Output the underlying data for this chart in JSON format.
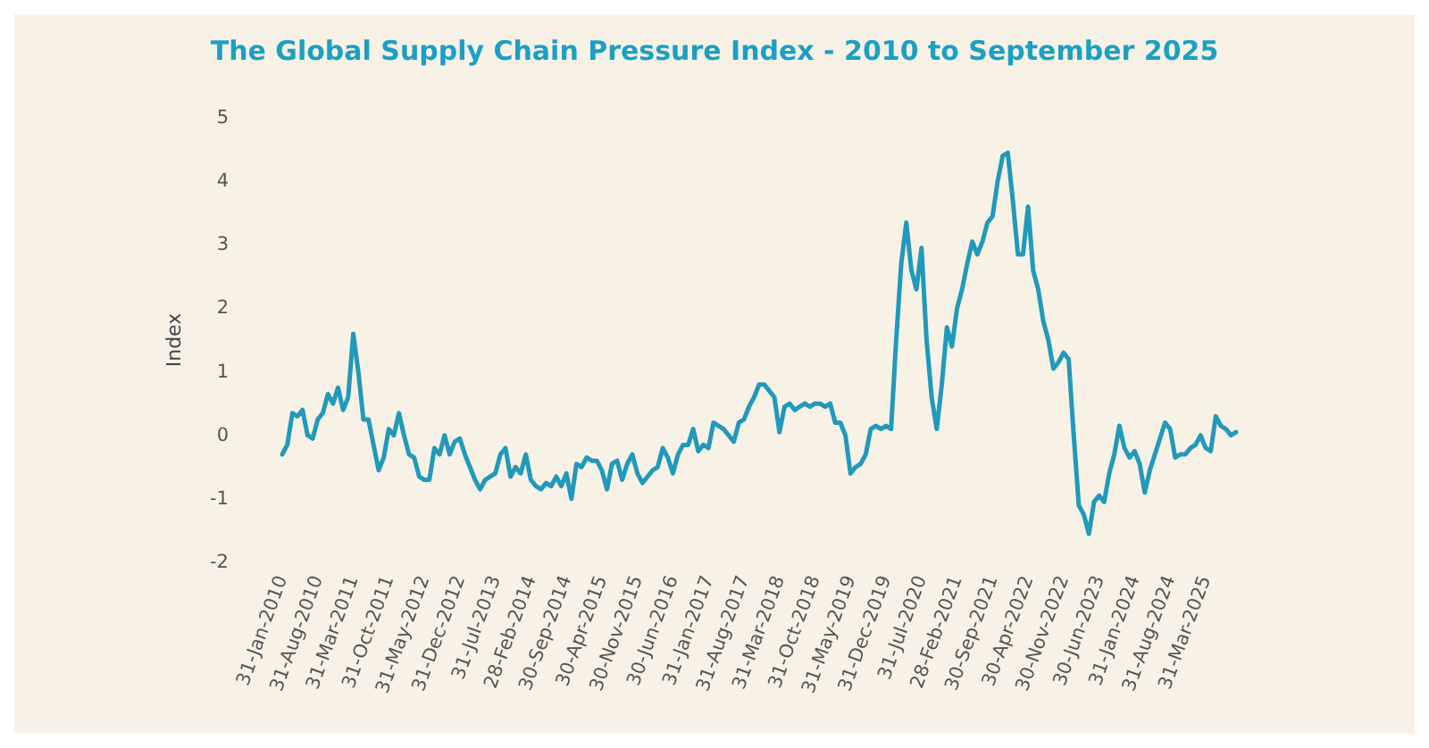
{
  "chart_data": {
    "type": "line",
    "title": "The Global Supply Chain Pressure Index - 2010 to September 2025",
    "ylabel": "Index",
    "categories": [
      "31-Jan-2010",
      null,
      null,
      null,
      null,
      null,
      null,
      "31-Aug-2010",
      null,
      null,
      null,
      null,
      null,
      null,
      "31-Mar-2011",
      null,
      null,
      null,
      null,
      null,
      null,
      "31-Oct-2011",
      null,
      null,
      null,
      null,
      null,
      null,
      "31-May-2012",
      null,
      null,
      null,
      null,
      null,
      null,
      "31-Dec-2012",
      null,
      null,
      null,
      null,
      null,
      null,
      "31-Jul-2013",
      null,
      null,
      null,
      null,
      null,
      null,
      "28-Feb-2014",
      null,
      null,
      null,
      null,
      null,
      null,
      "30-Sep-2014",
      null,
      null,
      null,
      null,
      null,
      null,
      "30-Apr-2015",
      null,
      null,
      null,
      null,
      null,
      null,
      "30-Nov-2015",
      null,
      null,
      null,
      null,
      null,
      null,
      "30-Jun-2016",
      null,
      null,
      null,
      null,
      null,
      null,
      "31-Jan-2017",
      null,
      null,
      null,
      null,
      null,
      null,
      "31-Aug-2017",
      null,
      null,
      null,
      null,
      null,
      null,
      "31-Mar-2018",
      null,
      null,
      null,
      null,
      null,
      null,
      "31-Oct-2018",
      null,
      null,
      null,
      null,
      null,
      null,
      "31-May-2019",
      null,
      null,
      null,
      null,
      null,
      null,
      "31-Dec-2019",
      null,
      null,
      null,
      null,
      null,
      null,
      "31-Jul-2020",
      null,
      null,
      null,
      null,
      null,
      null,
      "28-Feb-2021",
      null,
      null,
      null,
      null,
      null,
      null,
      "30-Sep-2021",
      null,
      null,
      null,
      null,
      null,
      null,
      "30-Apr-2022",
      null,
      null,
      null,
      null,
      null,
      null,
      "30-Nov-2022",
      null,
      null,
      null,
      null,
      null,
      null,
      "30-Jun-2023",
      null,
      null,
      null,
      null,
      null,
      null,
      "31-Jan-2024",
      null,
      null,
      null,
      null,
      null,
      null,
      "31-Aug-2024",
      null,
      null,
      null,
      null,
      null,
      null,
      "31-Mar-2025",
      null,
      null,
      null,
      null,
      null,
      null
    ],
    "series": [
      {
        "color": "#2199ba",
        "values": [
          -0.3,
          -0.15,
          0.35,
          0.3,
          0.4,
          0.0,
          -0.05,
          0.25,
          0.35,
          0.65,
          0.5,
          0.75,
          0.4,
          0.6,
          1.6,
          1.0,
          0.25,
          0.25,
          -0.15,
          -0.55,
          -0.35,
          0.1,
          0.0,
          0.35,
          0.0,
          -0.3,
          -0.35,
          -0.65,
          -0.7,
          -0.7,
          -0.2,
          -0.3,
          0.0,
          -0.3,
          -0.1,
          -0.05,
          -0.3,
          -0.5,
          -0.7,
          -0.85,
          -0.7,
          -0.65,
          -0.6,
          -0.3,
          -0.2,
          -0.65,
          -0.5,
          -0.6,
          -0.3,
          -0.7,
          -0.8,
          -0.85,
          -0.75,
          -0.8,
          -0.65,
          -0.8,
          -0.6,
          -1.0,
          -0.45,
          -0.5,
          -0.35,
          -0.4,
          -0.4,
          -0.55,
          -0.85,
          -0.45,
          -0.4,
          -0.7,
          -0.45,
          -0.3,
          -0.6,
          -0.75,
          -0.65,
          -0.55,
          -0.5,
          -0.2,
          -0.35,
          -0.6,
          -0.3,
          -0.15,
          -0.15,
          0.1,
          -0.25,
          -0.15,
          -0.2,
          0.2,
          0.15,
          0.1,
          0.0,
          -0.1,
          0.2,
          0.25,
          0.45,
          0.6,
          0.8,
          0.8,
          0.7,
          0.6,
          0.05,
          0.45,
          0.5,
          0.4,
          0.45,
          0.5,
          0.45,
          0.5,
          0.5,
          0.45,
          0.5,
          0.2,
          0.2,
          0.0,
          -0.6,
          -0.5,
          -0.45,
          -0.3,
          0.1,
          0.15,
          0.1,
          0.15,
          0.1,
          1.5,
          2.7,
          3.35,
          2.6,
          2.3,
          2.95,
          1.5,
          0.6,
          0.1,
          0.8,
          1.7,
          1.4,
          2.0,
          2.3,
          2.7,
          3.05,
          2.85,
          3.05,
          3.35,
          3.45,
          4.0,
          4.4,
          4.45,
          3.7,
          2.85,
          2.85,
          3.6,
          2.6,
          2.3,
          1.8,
          1.5,
          1.05,
          1.15,
          1.3,
          1.2,
          0.0,
          -1.1,
          -1.25,
          -1.55,
          -1.05,
          -0.95,
          -1.05,
          -0.6,
          -0.3,
          0.15,
          -0.2,
          -0.35,
          -0.25,
          -0.45,
          -0.9,
          -0.55,
          -0.3,
          -0.05,
          0.2,
          0.1,
          -0.35,
          -0.3,
          -0.3,
          -0.2,
          -0.15,
          0.0,
          -0.2,
          -0.25,
          0.3,
          0.15,
          0.1,
          0.0,
          0.05
        ]
      }
    ],
    "ylim": [
      -2,
      5
    ],
    "yticks": [
      -2,
      -1,
      0,
      1,
      2,
      3,
      4,
      5
    ],
    "grid": false,
    "marker": "none",
    "line_style": "solid"
  }
}
